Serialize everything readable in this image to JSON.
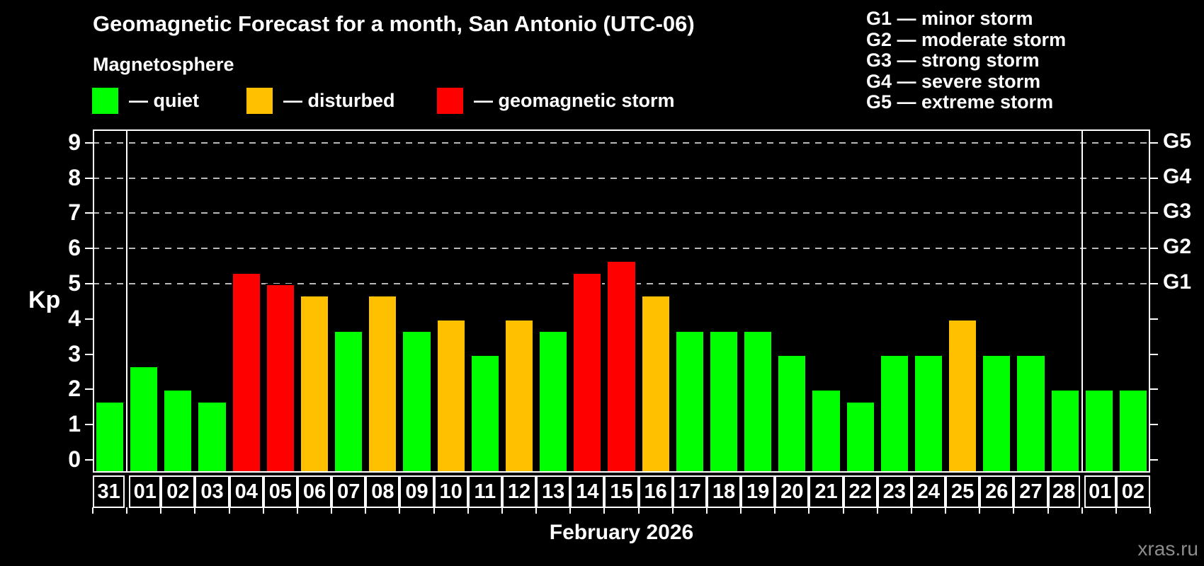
{
  "header": {
    "subtitle": "Magnetosphere"
  },
  "legend": {
    "items": [
      {
        "key": "quiet",
        "label": "— quiet",
        "color": "#00FF00"
      },
      {
        "key": "disturbed",
        "label": "— disturbed",
        "color": "#FFC000"
      },
      {
        "key": "storm",
        "label": "— geomagnetic storm",
        "color": "#FF0000"
      }
    ]
  },
  "g_legend": {
    "items": [
      "G1 — minor storm",
      "G2 — moderate storm",
      "G3 — strong storm",
      "G4 — severe storm",
      "G5 — extreme storm"
    ]
  },
  "chart_data": {
    "type": "bar",
    "title": "Geomagnetic Forecast for a month, San Antonio (UTC-06)",
    "xlabel": "February 2026",
    "ylabel": "Kp",
    "ylim": [
      0,
      9
    ],
    "yticks": [
      0,
      1,
      2,
      3,
      4,
      5,
      6,
      7,
      8,
      9
    ],
    "gridlines_at": [
      5,
      6,
      7,
      8,
      9
    ],
    "grid": true,
    "right_axis": [
      {
        "kp": 5,
        "label": "G1"
      },
      {
        "kp": 6,
        "label": "G2"
      },
      {
        "kp": 7,
        "label": "G3"
      },
      {
        "kp": 8,
        "label": "G4"
      },
      {
        "kp": 9,
        "label": "G5"
      }
    ],
    "categories": [
      "31",
      "01",
      "02",
      "03",
      "04",
      "05",
      "06",
      "07",
      "08",
      "09",
      "10",
      "11",
      "12",
      "13",
      "14",
      "15",
      "16",
      "17",
      "18",
      "19",
      "20",
      "21",
      "22",
      "23",
      "24",
      "25",
      "26",
      "27",
      "28",
      "01",
      "02"
    ],
    "values": [
      1.67,
      2.67,
      2.0,
      1.67,
      5.33,
      5.0,
      4.67,
      3.67,
      4.67,
      3.67,
      4.0,
      3.0,
      4.0,
      3.67,
      5.33,
      5.67,
      4.67,
      3.67,
      3.67,
      3.67,
      3.0,
      2.0,
      1.67,
      3.0,
      3.0,
      4.0,
      3.0,
      3.0,
      2.0,
      2.0,
      2.0
    ],
    "statuses": [
      "quiet",
      "quiet",
      "quiet",
      "quiet",
      "storm",
      "storm",
      "disturbed",
      "quiet",
      "disturbed",
      "quiet",
      "disturbed",
      "quiet",
      "disturbed",
      "quiet",
      "storm",
      "storm",
      "disturbed",
      "quiet",
      "quiet",
      "quiet",
      "quiet",
      "quiet",
      "quiet",
      "quiet",
      "quiet",
      "disturbed",
      "quiet",
      "quiet",
      "quiet",
      "quiet",
      "quiet"
    ],
    "month_separators_after": [
      0,
      28
    ],
    "colors": {
      "quiet": "#00FF00",
      "disturbed": "#FFC000",
      "storm": "#FF0000"
    }
  },
  "watermark": "xras.ru"
}
